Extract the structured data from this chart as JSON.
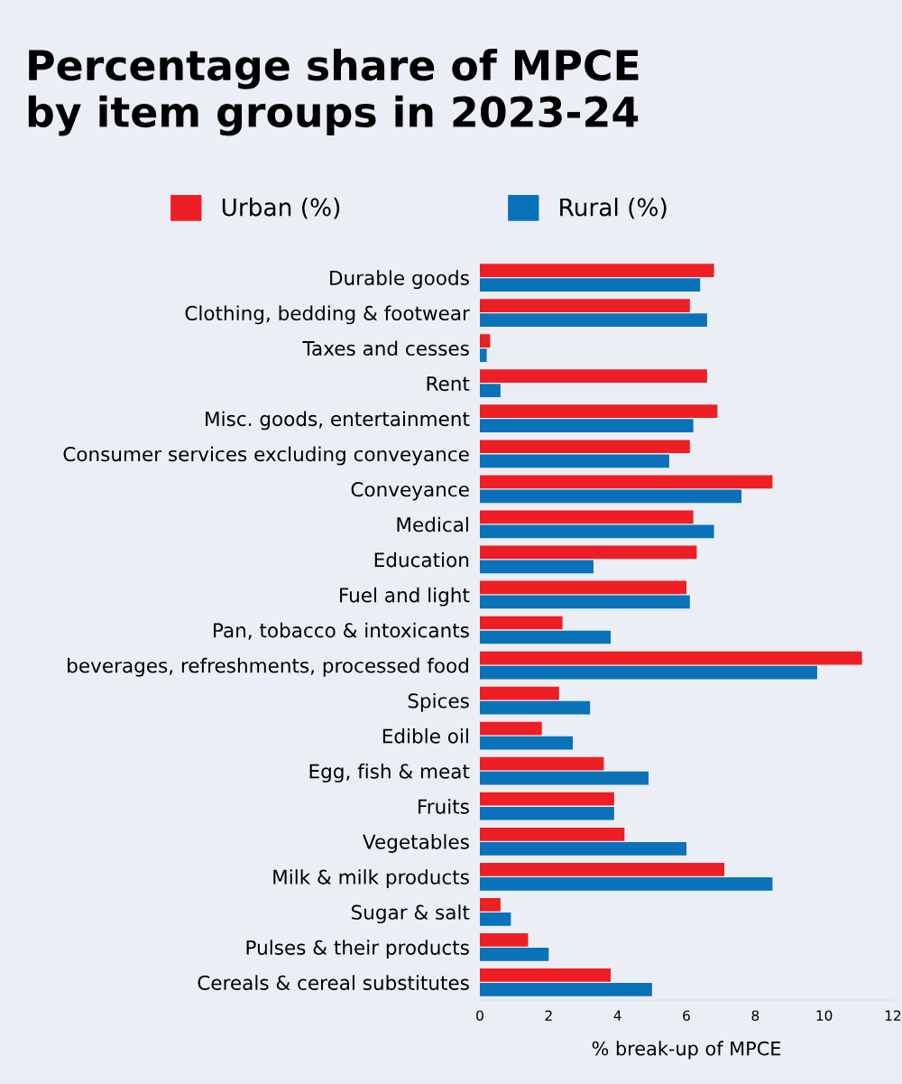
{
  "chart_data": {
    "type": "bar",
    "orientation": "horizontal",
    "title": "Percentage share of MPCE\nby item groups in 2023-24",
    "xlabel": "% break-up of MPCE",
    "categories": [
      "Durable goods",
      "Clothing, bedding & footwear",
      "Taxes and cesses",
      "Rent",
      "Misc. goods, entertainment",
      "Consumer services excluding conveyance",
      "Conveyance",
      "Medical",
      "Education",
      "Fuel and light",
      "Pan, tobacco & intoxicants",
      "beverages, refreshments, processed food",
      "Spices",
      "Edible oil",
      "Egg, fish & meat",
      "Fruits",
      "Vegetables",
      "Milk & milk products",
      "Sugar & salt",
      "Pulses & their products",
      "Cereals & cereal substitutes"
    ],
    "series": [
      {
        "name": "Urban (%)",
        "color": "#ed1f24",
        "values": [
          6.8,
          6.1,
          0.3,
          6.6,
          6.9,
          6.1,
          8.5,
          6.2,
          6.3,
          6.0,
          2.4,
          11.1,
          2.3,
          1.8,
          3.6,
          3.9,
          4.2,
          7.1,
          0.6,
          1.4,
          3.8
        ]
      },
      {
        "name": "Rural (%)",
        "color": "#0a72b8",
        "values": [
          6.4,
          6.6,
          0.2,
          0.6,
          6.2,
          5.5,
          7.6,
          6.8,
          3.3,
          6.1,
          3.8,
          9.8,
          3.2,
          2.7,
          4.9,
          3.9,
          6.0,
          8.5,
          0.9,
          2.0,
          5.0
        ]
      }
    ],
    "xlim": [
      0,
      12
    ],
    "xticks": [
      0,
      2,
      4,
      6,
      8,
      10,
      12
    ],
    "grid": false,
    "legend": "top"
  }
}
